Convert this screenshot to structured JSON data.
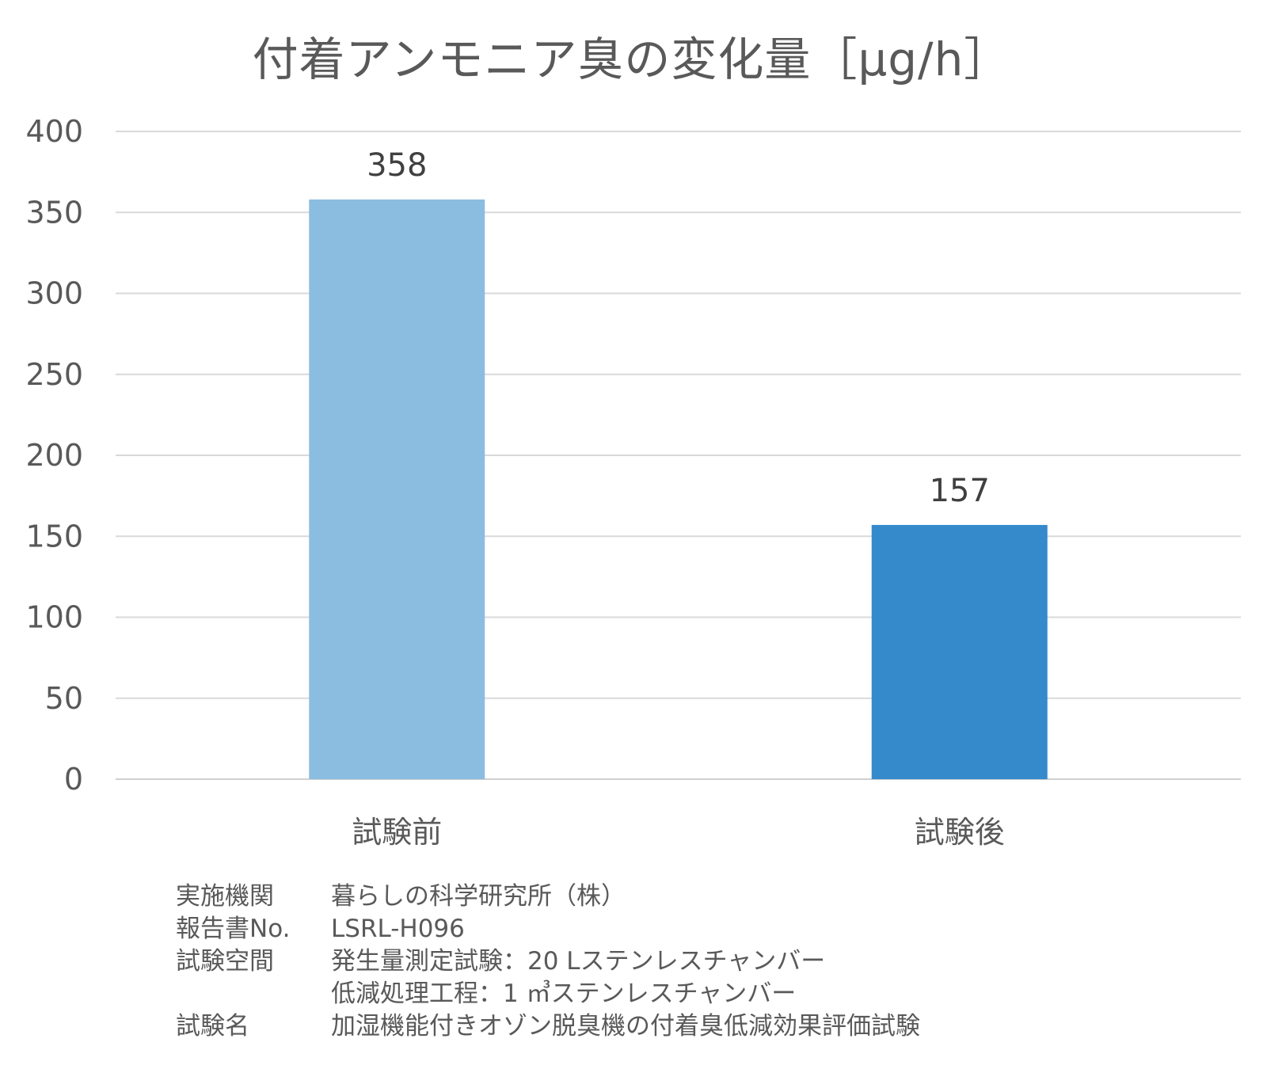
{
  "chart_data": {
    "type": "bar",
    "title": "付着アンモニア臭の変化量［μg/h］",
    "categories": [
      "試験前",
      "試験後"
    ],
    "values": [
      358,
      157
    ],
    "data_labels": [
      "358",
      "157"
    ],
    "ylim": [
      0,
      400
    ],
    "yticks": [
      "0",
      "50",
      "100",
      "150",
      "200",
      "250",
      "300",
      "350",
      "400"
    ],
    "grid": true,
    "legend": "none",
    "colors": [
      "#8bbde1",
      "#358acb"
    ]
  },
  "info": [
    {
      "key": "実施機関",
      "value": "暮らしの科学研究所（株）"
    },
    {
      "key": "報告書No.",
      "value": "LSRL-H096"
    },
    {
      "key": "試験空間",
      "value": "発生量測定試験：20 Lステンレスチャンバー"
    },
    {
      "key": "",
      "value": "低減処理工程：1 ㎥ステンレスチャンバー"
    },
    {
      "key": "試験名",
      "value": "加湿機能付きオゾン脱臭機の付着臭低減効果評価試験"
    }
  ]
}
